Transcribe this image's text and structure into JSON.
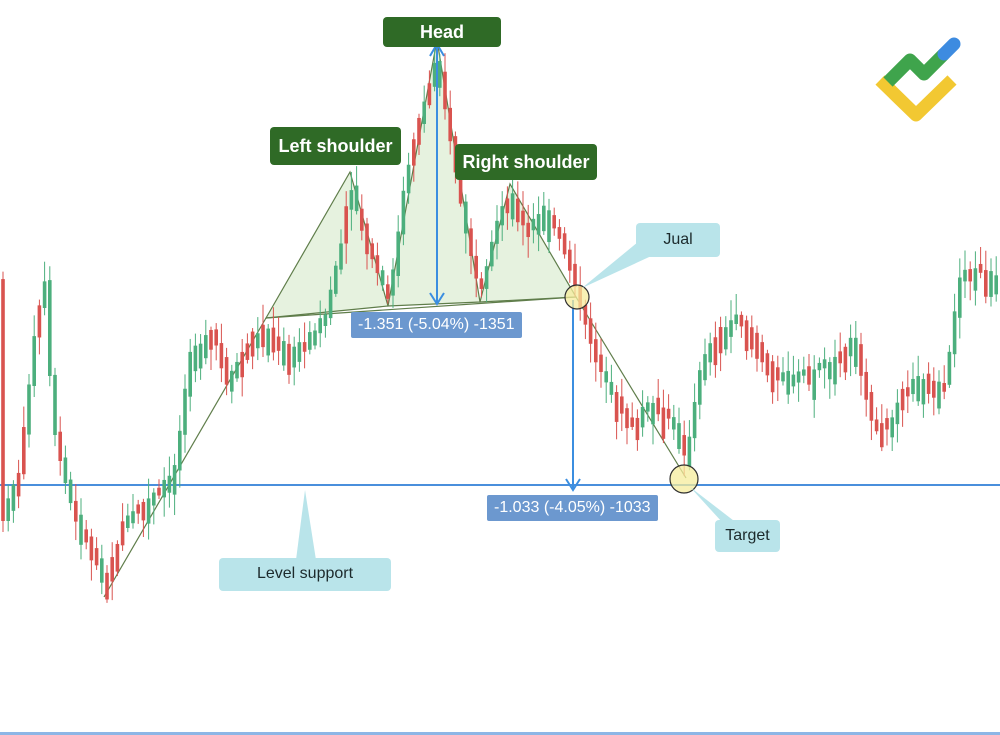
{
  "chart_data": {
    "type": "candlestick",
    "title": "",
    "xlabel": "",
    "ylabel": "",
    "grid": false,
    "pattern": "head-and-shoulders",
    "labels": {
      "head": "Head",
      "left_shoulder": "Left shoulder",
      "right_shoulder": "Right shoulder",
      "neckline_break": "Jual",
      "target": "Target",
      "support": "Level support"
    },
    "measurements": {
      "head_height": "-1.351 (-5.04%) -1351",
      "target_distance": "-1.033 (-4.05%) -1033"
    },
    "colors": {
      "bullish": "#4caf7d",
      "bearish": "#d9534f",
      "pattern_fill": "#e6f2df",
      "pattern_line": "#5f7d4a",
      "support_line": "#4a8fdc",
      "tag_green": "#2f6a26",
      "callout": "#b9e4ea",
      "measure_tag": "#6c98cf"
    },
    "logo": "brand-logo"
  }
}
